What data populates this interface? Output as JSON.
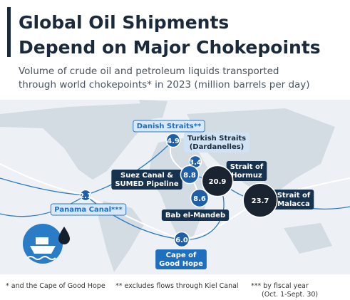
{
  "header": {
    "title": [
      "Global Oil Shipments",
      "Depend on Major Chokepoints"
    ],
    "subtitle": [
      "Volume of crude oil and petroleum liquids transported",
      "through world chokepoints* in 2023 (million barrels per day)"
    ]
  },
  "chokepoints": [
    {
      "name": [
        "Danish Straits**"
      ],
      "value": 4.9
    },
    {
      "name": [
        "Turkish Straits",
        "(Dardanelles)"
      ],
      "value": 3.4
    },
    {
      "name": [
        "Suez Canal &",
        "SUMED Pipeline"
      ],
      "value": 8.8
    },
    {
      "name": [
        "Strait of",
        "Hormuz"
      ],
      "value": 20.9
    },
    {
      "name": [
        "Bab el-Mandeb"
      ],
      "value": 8.6
    },
    {
      "name": [
        "Strait of",
        "Malacca"
      ],
      "value": 23.7
    },
    {
      "name": [
        "Panama Canal***"
      ],
      "value": 2.1
    },
    {
      "name": [
        "Cape of",
        "Good Hope"
      ],
      "value": 6,
      "value_label": "6.0"
    }
  ],
  "footnotes": [
    "* and the Cape of Good Hope",
    "** excludes flows through Kiel Canal",
    "*** by fiscal year",
    "(Oct. 1-Sept. 30)"
  ]
}
